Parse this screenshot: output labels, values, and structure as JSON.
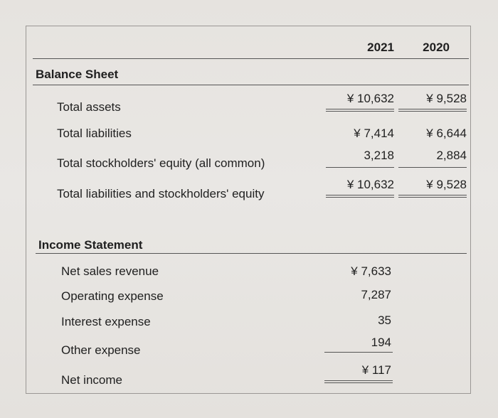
{
  "columns": {
    "y1": "2021",
    "y2": "2020"
  },
  "balance_sheet": {
    "title": "Balance Sheet",
    "rows": [
      {
        "label": "Total assets",
        "v1": "¥ 10,632",
        "v2": "¥ 9,528"
      },
      {
        "label": "Total liabilities",
        "v1": "¥ 7,414",
        "v2": "¥ 6,644"
      },
      {
        "label": "Total stockholders' equity (all common)",
        "v1": "3,218",
        "v2": "2,884"
      },
      {
        "label": "Total liabilities and stockholders' equity",
        "v1": "¥ 10,632",
        "v2": "¥ 9,528"
      }
    ]
  },
  "income_statement": {
    "title": "Income Statement",
    "rows": [
      {
        "label": "Net sales revenue",
        "v1": "¥ 7,633"
      },
      {
        "label": "Operating expense",
        "v1": "7,287"
      },
      {
        "label": "Interest expense",
        "v1": "35"
      },
      {
        "label": "Other expense",
        "v1": "194"
      },
      {
        "label": "Net income",
        "v1": "¥ 117"
      }
    ]
  }
}
